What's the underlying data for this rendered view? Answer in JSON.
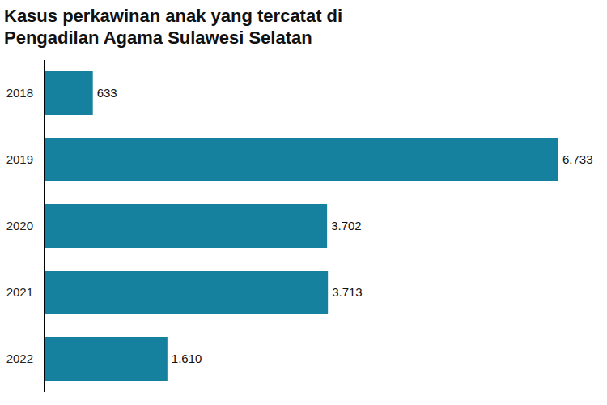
{
  "chart_data": {
    "type": "bar",
    "title": "Kasus perkawinan anak yang tercatat di Pengadilan Agama Sulawesi Selatan",
    "categories": [
      "2018",
      "2019",
      "2020",
      "2021",
      "2022"
    ],
    "values": [
      633,
      6733,
      3702,
      3713,
      1610
    ],
    "value_labels": [
      "633",
      "6.733",
      "3.702",
      "3.713",
      "1.610"
    ],
    "color": "#16809f",
    "orientation": "horizontal",
    "xlim": [
      0,
      6733
    ],
    "data_labels": true,
    "tick_labels": "y",
    "grid": false
  }
}
